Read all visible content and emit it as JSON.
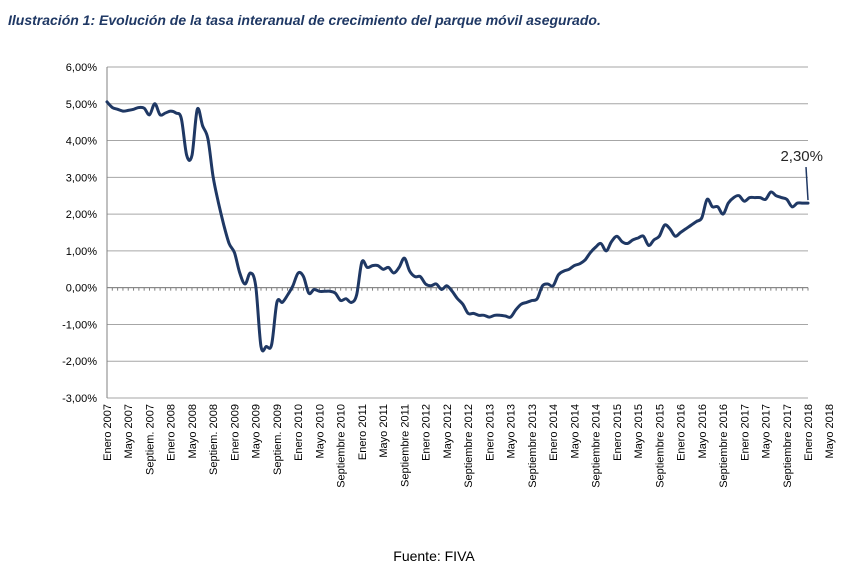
{
  "figure": {
    "title": "Ilustración 1: Evolución de la tasa interanual de crecimiento del parque móvil asegurado.",
    "source": "Fuente: FIVA"
  },
  "chart_data": {
    "type": "line",
    "title": "",
    "xlabel": "",
    "ylabel": "",
    "ylim": [
      -3,
      6
    ],
    "yticks": [
      6,
      5,
      4,
      3,
      2,
      1,
      0,
      -1,
      -2,
      -3
    ],
    "ytick_labels": [
      "6,00%",
      "5,00%",
      "4,00%",
      "3,00%",
      "2,00%",
      "1,00%",
      "0,00%",
      "-1,00%",
      "-2,00%",
      "-3,00%"
    ],
    "grid": "horizontal",
    "legend": "none",
    "line_color": "#1f3864",
    "x_tick_labels": [
      "Enero 2007",
      "Mayo 2007",
      "Septiem. 2007",
      "Enero 2008",
      "Mayo 2008",
      "Septiem. 2008",
      "Enero 2009",
      "Mayo 2009",
      "Septiem. 2009",
      "Enero 2010",
      "Mayo 2010",
      "Septiembre 2010",
      "Enero 2011",
      "Mayo 2011",
      "Septiembre 2011",
      "Enero 2012",
      "Mayo 2012",
      "Septiembre 2012",
      "Enero 2013",
      "Mayo 2013",
      "Septiembre 2013",
      "Enero 2014",
      "Mayo 2014",
      "Septiembre 2014",
      "Enero 2015",
      "Mayo 2015",
      "Septiembre 2015",
      "Enero 2016",
      "Mayo 2016",
      "Septiembre 2016",
      "Enero 2017",
      "Mayo 2017",
      "Septiembre 2017",
      "Enero 2018",
      "Mayo 2018"
    ],
    "series": [
      {
        "name": "",
        "x_start": "Enero 2007",
        "frequency": "monthly",
        "values": [
          5.05,
          4.9,
          4.85,
          4.8,
          4.82,
          4.85,
          4.9,
          4.88,
          4.7,
          5.0,
          4.7,
          4.75,
          4.8,
          4.75,
          4.6,
          3.6,
          3.6,
          4.85,
          4.4,
          4.05,
          3.0,
          2.3,
          1.7,
          1.2,
          0.95,
          0.4,
          0.1,
          0.4,
          0.05,
          -1.6,
          -1.6,
          -1.55,
          -0.4,
          -0.4,
          -0.2,
          0.05,
          0.4,
          0.3,
          -0.15,
          -0.05,
          -0.1,
          -0.1,
          -0.1,
          -0.15,
          -0.35,
          -0.3,
          -0.4,
          -0.2,
          0.7,
          0.55,
          0.6,
          0.6,
          0.5,
          0.55,
          0.4,
          0.55,
          0.8,
          0.45,
          0.3,
          0.3,
          0.1,
          0.05,
          0.1,
          -0.05,
          0.05,
          -0.1,
          -0.3,
          -0.45,
          -0.7,
          -0.7,
          -0.75,
          -0.75,
          -0.8,
          -0.75,
          -0.75,
          -0.77,
          -0.8,
          -0.6,
          -0.45,
          -0.4,
          -0.35,
          -0.3,
          0.05,
          0.1,
          0.05,
          0.35,
          0.45,
          0.5,
          0.6,
          0.65,
          0.75,
          0.95,
          1.1,
          1.2,
          1.0,
          1.25,
          1.4,
          1.25,
          1.2,
          1.3,
          1.35,
          1.4,
          1.15,
          1.3,
          1.4,
          1.7,
          1.6,
          1.4,
          1.5,
          1.6,
          1.7,
          1.8,
          1.9,
          2.4,
          2.2,
          2.2,
          2.0,
          2.3,
          2.45,
          2.5,
          2.35,
          2.45,
          2.45,
          2.45,
          2.4,
          2.6,
          2.5,
          2.45,
          2.4,
          2.2,
          2.3,
          2.3,
          2.3
        ]
      }
    ],
    "annotations": [
      {
        "text": "2,30%",
        "target": "last-point"
      }
    ]
  }
}
